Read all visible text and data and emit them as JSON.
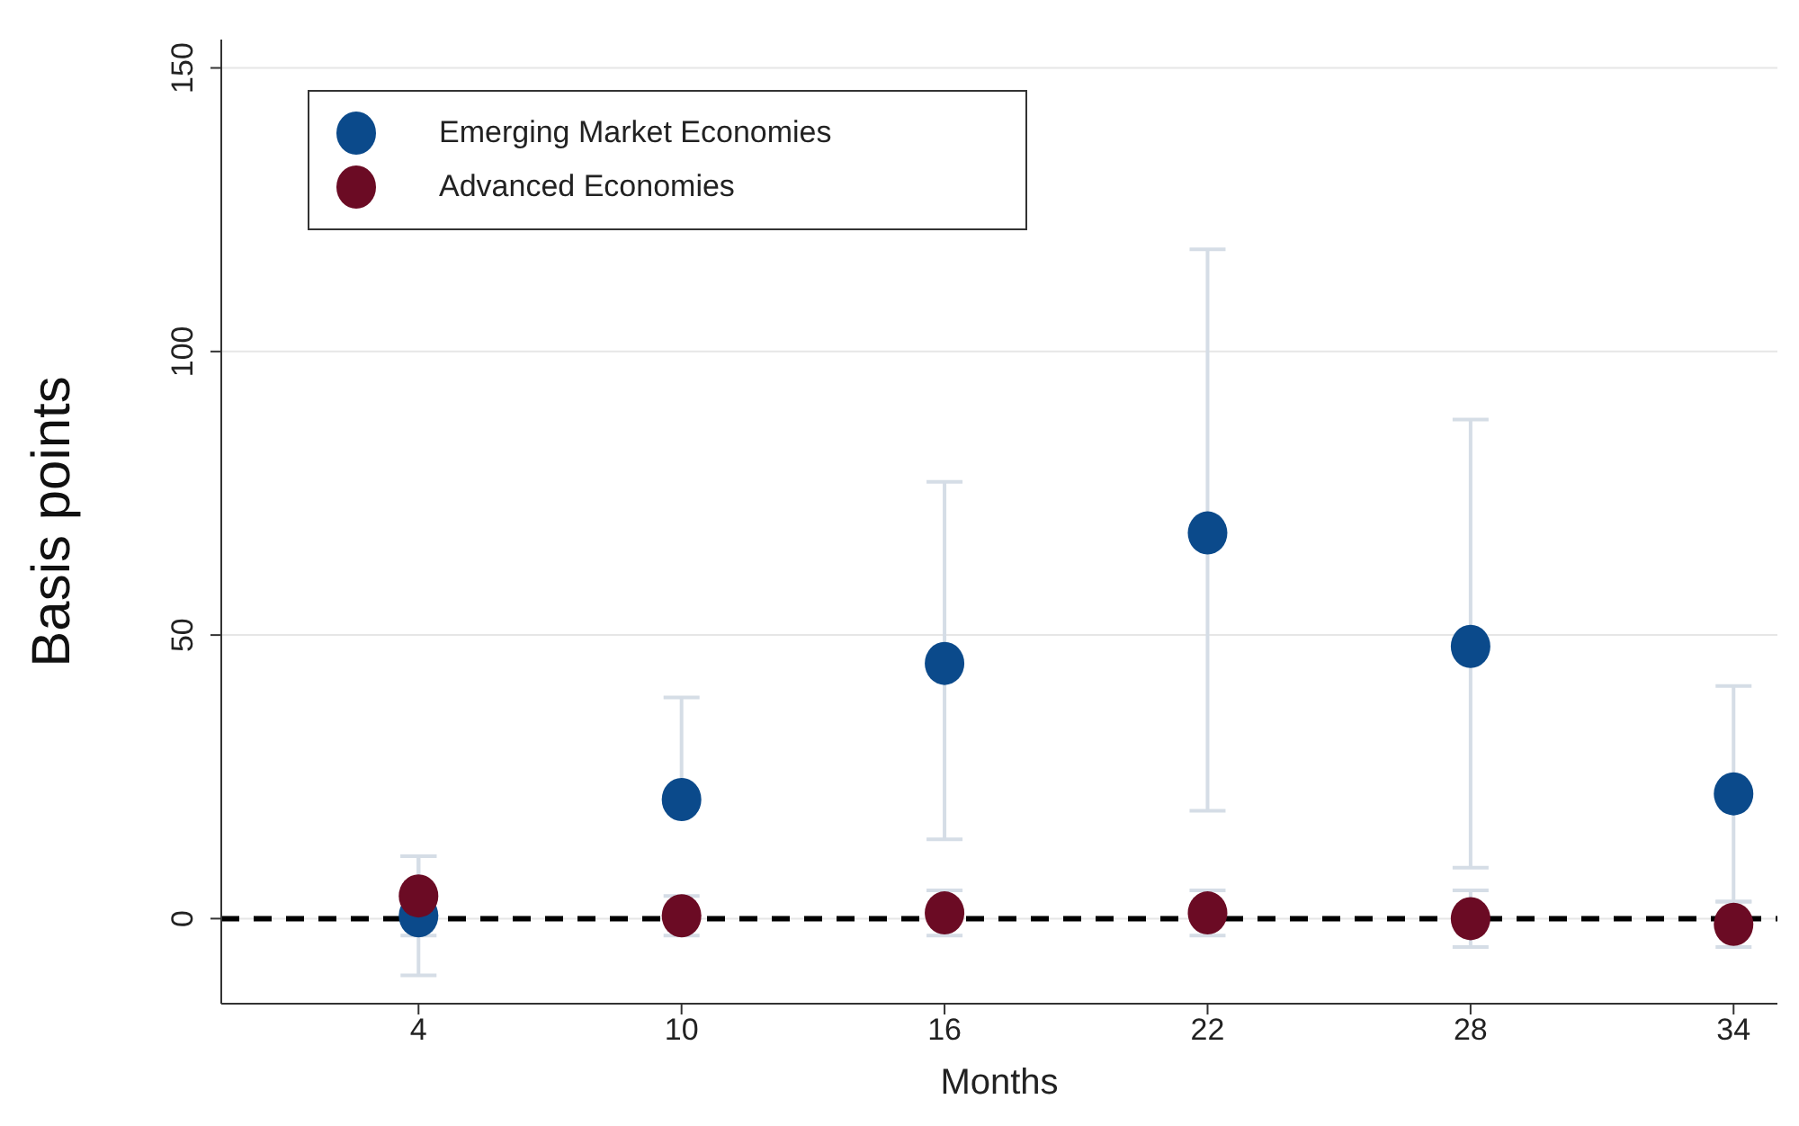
{
  "chart_data": {
    "type": "scatter",
    "xlabel": "Months",
    "ylabel": "Basis points",
    "x": [
      4,
      10,
      16,
      22,
      28,
      34
    ],
    "series": [
      {
        "name": "Emerging Market Economies",
        "color": "#0b4a8b",
        "values": [
          0.5,
          21,
          45,
          68,
          48,
          22
        ],
        "errors": [
          [
            -10,
            11
          ],
          [
            21,
            39
          ],
          [
            14,
            77
          ],
          [
            19,
            118
          ],
          [
            9,
            88
          ],
          [
            3,
            41
          ]
        ]
      },
      {
        "name": "Advanced Economies",
        "color": "#6b0b24",
        "values": [
          4,
          0.5,
          1,
          1,
          0,
          -1
        ],
        "errors": [
          [
            -3,
            11
          ],
          [
            -3,
            4
          ],
          [
            -3,
            5
          ],
          [
            -3,
            5
          ],
          [
            -5,
            5
          ],
          [
            -5,
            3
          ]
        ]
      }
    ],
    "xlim": [
      -0.5,
      35
    ],
    "xticks": [
      4,
      10,
      16,
      22,
      28,
      34
    ],
    "ylim": [
      -15,
      155
    ],
    "yticks": [
      0,
      50,
      100,
      150
    ],
    "ref_lines": [
      {
        "axis": "y",
        "value": 0,
        "color": "#000000",
        "line_style": "dashed"
      }
    ],
    "grid": "y",
    "legend": "top left",
    "marker": "circle"
  }
}
